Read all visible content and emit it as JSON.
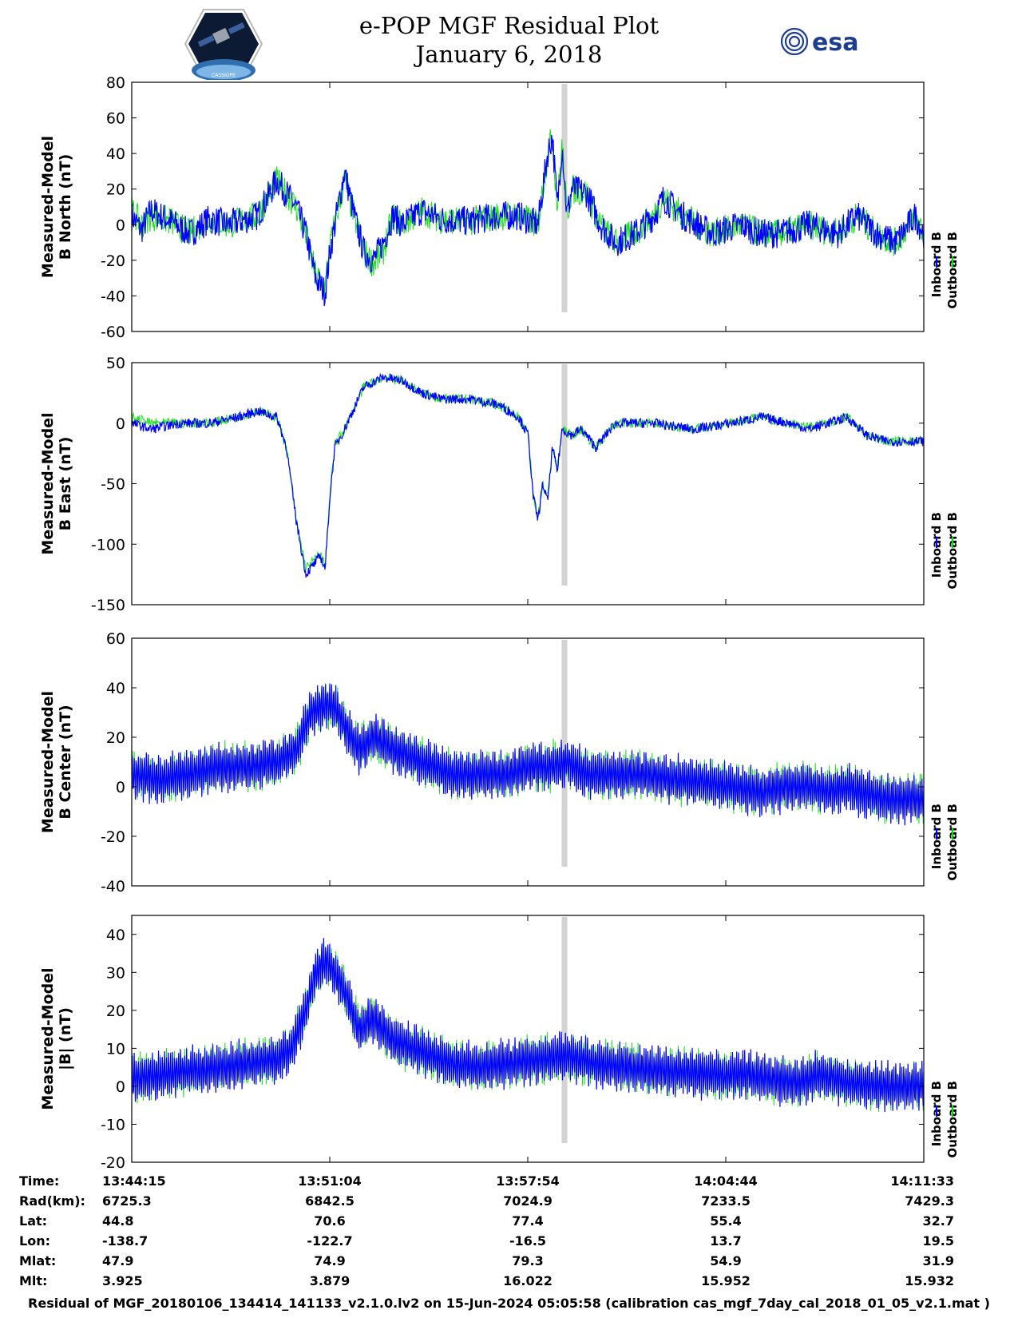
{
  "header": {
    "title_line1": "e-POP MGF Residual Plot",
    "title_line2": "January 6, 2018",
    "left_logo_text": "CASSIOPE",
    "right_logo_text": "esa"
  },
  "colors": {
    "inboard": "#0000ff",
    "outboard": "#00dd00",
    "gap_band": "#d3d3d3"
  },
  "legend": {
    "inboard": "Inboard B",
    "outboard": "Outboard B"
  },
  "chart_data": [
    {
      "type": "line",
      "ylabel_line1": "Measured-Model",
      "ylabel_line2": "B North (nT)",
      "ylim": [
        -60,
        80
      ],
      "yticks": [
        80,
        60,
        40,
        20,
        0,
        -20,
        -40,
        -60
      ],
      "x_range_s": [
        0,
        1638
      ],
      "gap_at_s": 895,
      "x": [
        0,
        20,
        40,
        80,
        120,
        160,
        200,
        260,
        300,
        340,
        360,
        380,
        400,
        410,
        420,
        440,
        460,
        480,
        500,
        520,
        540,
        560,
        600,
        640,
        700,
        760,
        800,
        840,
        860,
        870,
        880,
        890,
        900,
        910,
        940,
        970,
        1000,
        1040,
        1080,
        1100,
        1140,
        1200,
        1260,
        1300,
        1340,
        1400,
        1460,
        1500,
        1540,
        1580,
        1620,
        1638
      ],
      "series": [
        {
          "name": "Inboard B",
          "values": [
            5,
            -3,
            8,
            2,
            -5,
            3,
            0,
            5,
            25,
            10,
            -5,
            -30,
            -38,
            -15,
            0,
            30,
            5,
            -15,
            -20,
            -10,
            5,
            0,
            8,
            3,
            2,
            5,
            5,
            0,
            40,
            50,
            10,
            45,
            5,
            20,
            18,
            0,
            -10,
            -5,
            5,
            15,
            5,
            -5,
            0,
            -5,
            -5,
            0,
            -5,
            5,
            -5,
            -10,
            5,
            -5
          ]
        },
        {
          "name": "Outboard B",
          "values": [
            8,
            0,
            5,
            2,
            -5,
            3,
            0,
            5,
            25,
            10,
            -5,
            -28,
            -35,
            -12,
            0,
            25,
            5,
            -15,
            -22,
            -15,
            5,
            0,
            8,
            3,
            2,
            5,
            5,
            0,
            40,
            50,
            10,
            45,
            5,
            20,
            18,
            0,
            -10,
            -5,
            5,
            15,
            5,
            -5,
            0,
            -5,
            -5,
            0,
            -5,
            5,
            -5,
            -10,
            5,
            -5
          ]
        }
      ]
    },
    {
      "type": "line",
      "ylabel_line1": "Measured-Model",
      "ylabel_line2": "B East (nT)",
      "ylim": [
        -150,
        50
      ],
      "yticks": [
        50,
        0,
        -50,
        -100,
        -150
      ],
      "x_range_s": [
        0,
        1638
      ],
      "gap_at_s": 895,
      "x": [
        0,
        40,
        100,
        160,
        220,
        260,
        300,
        320,
        340,
        360,
        390,
        400,
        410,
        420,
        440,
        480,
        520,
        560,
        600,
        640,
        700,
        760,
        800,
        820,
        830,
        840,
        850,
        860,
        870,
        880,
        890,
        910,
        930,
        960,
        1000,
        1080,
        1160,
        1240,
        1300,
        1360,
        1400,
        1440,
        1480,
        1520,
        1560,
        1600,
        1638
      ],
      "series": [
        {
          "name": "Inboard B",
          "values": [
            0,
            -5,
            0,
            0,
            5,
            10,
            5,
            -20,
            -80,
            -125,
            -110,
            -120,
            -60,
            -20,
            -5,
            30,
            38,
            35,
            25,
            20,
            20,
            15,
            5,
            -10,
            -60,
            -80,
            -50,
            -65,
            -20,
            -40,
            -5,
            -10,
            -5,
            -20,
            0,
            0,
            -5,
            0,
            5,
            0,
            -5,
            0,
            5,
            -10,
            -15,
            -15,
            -15
          ]
        },
        {
          "name": "Outboard B",
          "values": [
            5,
            0,
            0,
            0,
            5,
            10,
            5,
            -20,
            -80,
            -120,
            -108,
            -118,
            -58,
            -18,
            -5,
            30,
            38,
            35,
            25,
            20,
            20,
            15,
            5,
            -10,
            -58,
            -78,
            -50,
            -62,
            -20,
            -38,
            -5,
            -10,
            -5,
            -20,
            0,
            0,
            -5,
            0,
            5,
            0,
            -3,
            0,
            5,
            -10,
            -15,
            -15,
            -15
          ]
        }
      ]
    },
    {
      "type": "line",
      "ylabel_line1": "Measured-Model",
      "ylabel_line2": "B Center (nT)",
      "ylim": [
        -40,
        60
      ],
      "yticks": [
        60,
        40,
        20,
        0,
        -20,
        -40
      ],
      "x_range_s": [
        0,
        1638
      ],
      "gap_at_s": 895,
      "x": [
        0,
        60,
        120,
        180,
        240,
        300,
        340,
        370,
        400,
        420,
        440,
        470,
        500,
        540,
        600,
        660,
        720,
        780,
        820,
        860,
        900,
        940,
        1000,
        1060,
        1120,
        1180,
        1240,
        1300,
        1360,
        1400,
        1440,
        1480,
        1520,
        1560,
        1600,
        1638
      ],
      "series": [
        {
          "name": "Inboard B",
          "values": [
            5,
            3,
            5,
            8,
            8,
            10,
            15,
            30,
            33,
            32,
            25,
            15,
            20,
            15,
            10,
            5,
            5,
            5,
            8,
            8,
            10,
            5,
            5,
            5,
            3,
            2,
            0,
            -2,
            0,
            0,
            -2,
            0,
            -3,
            -5,
            -5,
            -5
          ]
        },
        {
          "name": "Outboard B",
          "values": [
            5,
            3,
            5,
            8,
            8,
            10,
            15,
            30,
            33,
            32,
            25,
            15,
            20,
            15,
            10,
            5,
            5,
            5,
            8,
            8,
            10,
            5,
            5,
            5,
            3,
            2,
            0,
            -2,
            0,
            0,
            -2,
            0,
            -3,
            -5,
            -5,
            -5
          ]
        }
      ]
    },
    {
      "type": "line",
      "ylabel_line1": "Measured-Model",
      "ylabel_line2": "|B| (nT)",
      "ylim": [
        -20,
        45
      ],
      "yticks": [
        40,
        30,
        20,
        10,
        0,
        -10,
        -20
      ],
      "x_range_s": [
        0,
        1638
      ],
      "gap_at_s": 895,
      "x": [
        0,
        60,
        120,
        180,
        240,
        300,
        330,
        360,
        380,
        400,
        420,
        440,
        470,
        500,
        540,
        600,
        660,
        720,
        780,
        840,
        900,
        960,
        1020,
        1080,
        1140,
        1200,
        1260,
        1320,
        1380,
        1420,
        1480,
        1540,
        1600,
        1638
      ],
      "series": [
        {
          "name": "Inboard B",
          "values": [
            2,
            3,
            4,
            5,
            6,
            7,
            10,
            20,
            30,
            33,
            30,
            25,
            15,
            18,
            12,
            9,
            6,
            5,
            6,
            7,
            8,
            6,
            5,
            4,
            4,
            3,
            3,
            2,
            1,
            3,
            1,
            0,
            0,
            0
          ]
        },
        {
          "name": "Outboard B",
          "values": [
            2,
            3,
            4,
            5,
            6,
            7,
            10,
            20,
            30,
            33,
            30,
            25,
            15,
            18,
            12,
            9,
            6,
            5,
            6,
            7,
            8,
            6,
            5,
            4,
            4,
            3,
            3,
            2,
            1,
            3,
            1,
            0,
            0,
            0
          ]
        }
      ]
    }
  ],
  "ephemeris": {
    "row_labels": [
      "Time:",
      "Rad(km):",
      "Lat:",
      "Lon:",
      "Mlat:",
      "Mlt:"
    ],
    "columns": [
      [
        "13:44:15",
        "6725.3",
        "44.8",
        "-138.7",
        "47.9",
        "3.925"
      ],
      [
        "13:51:04",
        "6842.5",
        "70.6",
        "-122.7",
        "74.9",
        "3.879"
      ],
      [
        "13:57:54",
        "7024.9",
        "77.4",
        "-16.5",
        "79.3",
        "16.022"
      ],
      [
        "14:04:44",
        "7233.5",
        "55.4",
        "13.7",
        "54.9",
        "15.952"
      ],
      [
        "14:11:33",
        "7429.3",
        "32.7",
        "19.5",
        "31.9",
        "15.932"
      ]
    ]
  },
  "footer": "Residual of MGF_20180106_134414_141133_v2.1.0.lv2 on 15-Jun-2024 05:05:58 (calibration cas_mgf_7day_cal_2018_01_05_v2.1.mat )"
}
